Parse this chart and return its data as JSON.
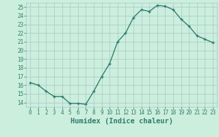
{
  "x": [
    0,
    1,
    2,
    3,
    4,
    5,
    6,
    7,
    8,
    9,
    10,
    11,
    12,
    13,
    14,
    15,
    16,
    17,
    18,
    19,
    20,
    21,
    22,
    23
  ],
  "y": [
    16.3,
    16.0,
    15.3,
    14.7,
    14.7,
    13.9,
    13.9,
    13.8,
    15.3,
    17.0,
    18.5,
    21.0,
    22.0,
    23.8,
    24.7,
    24.5,
    25.2,
    25.1,
    24.7,
    23.6,
    22.8,
    21.7,
    21.3,
    20.9
  ],
  "line_color": "#2e7d6e",
  "marker": "+",
  "marker_size": 3.5,
  "background_color": "#cceedd",
  "grid_color": "#aacccc",
  "xlabel": "Humidex (Indice chaleur)",
  "ylabel": "",
  "ylim": [
    13.5,
    25.5
  ],
  "yticks": [
    14,
    15,
    16,
    17,
    18,
    19,
    20,
    21,
    22,
    23,
    24,
    25
  ],
  "xticks": [
    0,
    1,
    2,
    3,
    4,
    5,
    6,
    7,
    8,
    9,
    10,
    11,
    12,
    13,
    14,
    15,
    16,
    17,
    18,
    19,
    20,
    21,
    22,
    23
  ],
  "tick_color": "#2e7d6e",
  "tick_fontsize": 5.5,
  "xlabel_fontsize": 7.5,
  "line_width": 1.0
}
